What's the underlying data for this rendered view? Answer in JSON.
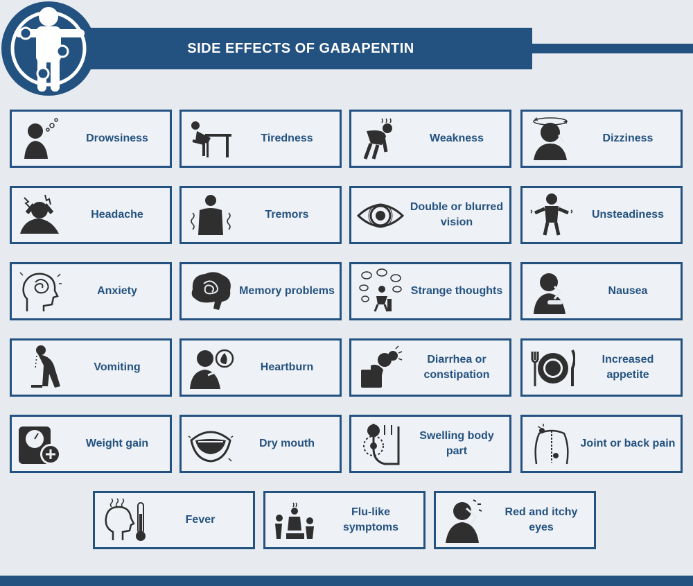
{
  "header": {
    "title": "SIDE EFFECTS OF GABAPENTIN"
  },
  "colors": {
    "primary": "#245280",
    "background": "#e7ebf0",
    "icon": "#2f2f2f"
  },
  "cards": [
    {
      "label": "Drowsiness",
      "icon": "sleepy-person-icon"
    },
    {
      "label": "Tiredness",
      "icon": "person-slumped-at-desk-icon"
    },
    {
      "label": "Weakness",
      "icon": "weak-bent-person-icon"
    },
    {
      "label": "Dizziness",
      "icon": "dizzy-person-icon"
    },
    {
      "label": "Headache",
      "icon": "headache-icon"
    },
    {
      "label": "Tremors",
      "icon": "shaking-person-icon"
    },
    {
      "label": "Double or blurred vision",
      "icon": "eye-icon"
    },
    {
      "label": "Unsteadiness",
      "icon": "wobbly-person-icon"
    },
    {
      "label": "Anxiety",
      "icon": "anxious-head-icon"
    },
    {
      "label": "Memory problems",
      "icon": "tangled-brain-icon"
    },
    {
      "label": "Strange thoughts",
      "icon": "thinking-person-icon"
    },
    {
      "label": "Nausea",
      "icon": "nauseous-person-icon"
    },
    {
      "label": "Vomiting",
      "icon": "vomiting-person-icon"
    },
    {
      "label": "Heartburn",
      "icon": "heartburn-icon"
    },
    {
      "label": "Diarrhea or constipation",
      "icon": "person-on-toilet-icon"
    },
    {
      "label": "Increased appetite",
      "icon": "plate-and-fork-icon"
    },
    {
      "label": "Weight gain",
      "icon": "scale-plus-icon"
    },
    {
      "label": "Dry mouth",
      "icon": "dry-mouth-icon"
    },
    {
      "label": "Swelling body part",
      "icon": "swollen-toe-icon"
    },
    {
      "label": "Joint or back pain",
      "icon": "back-pain-icon"
    },
    {
      "label": "Fever",
      "icon": "fever-thermometer-icon"
    },
    {
      "label": "Flu-like symptoms",
      "icon": "sick-people-icon"
    },
    {
      "label": "Red and itchy eyes",
      "icon": "rubbing-eyes-icon"
    }
  ]
}
